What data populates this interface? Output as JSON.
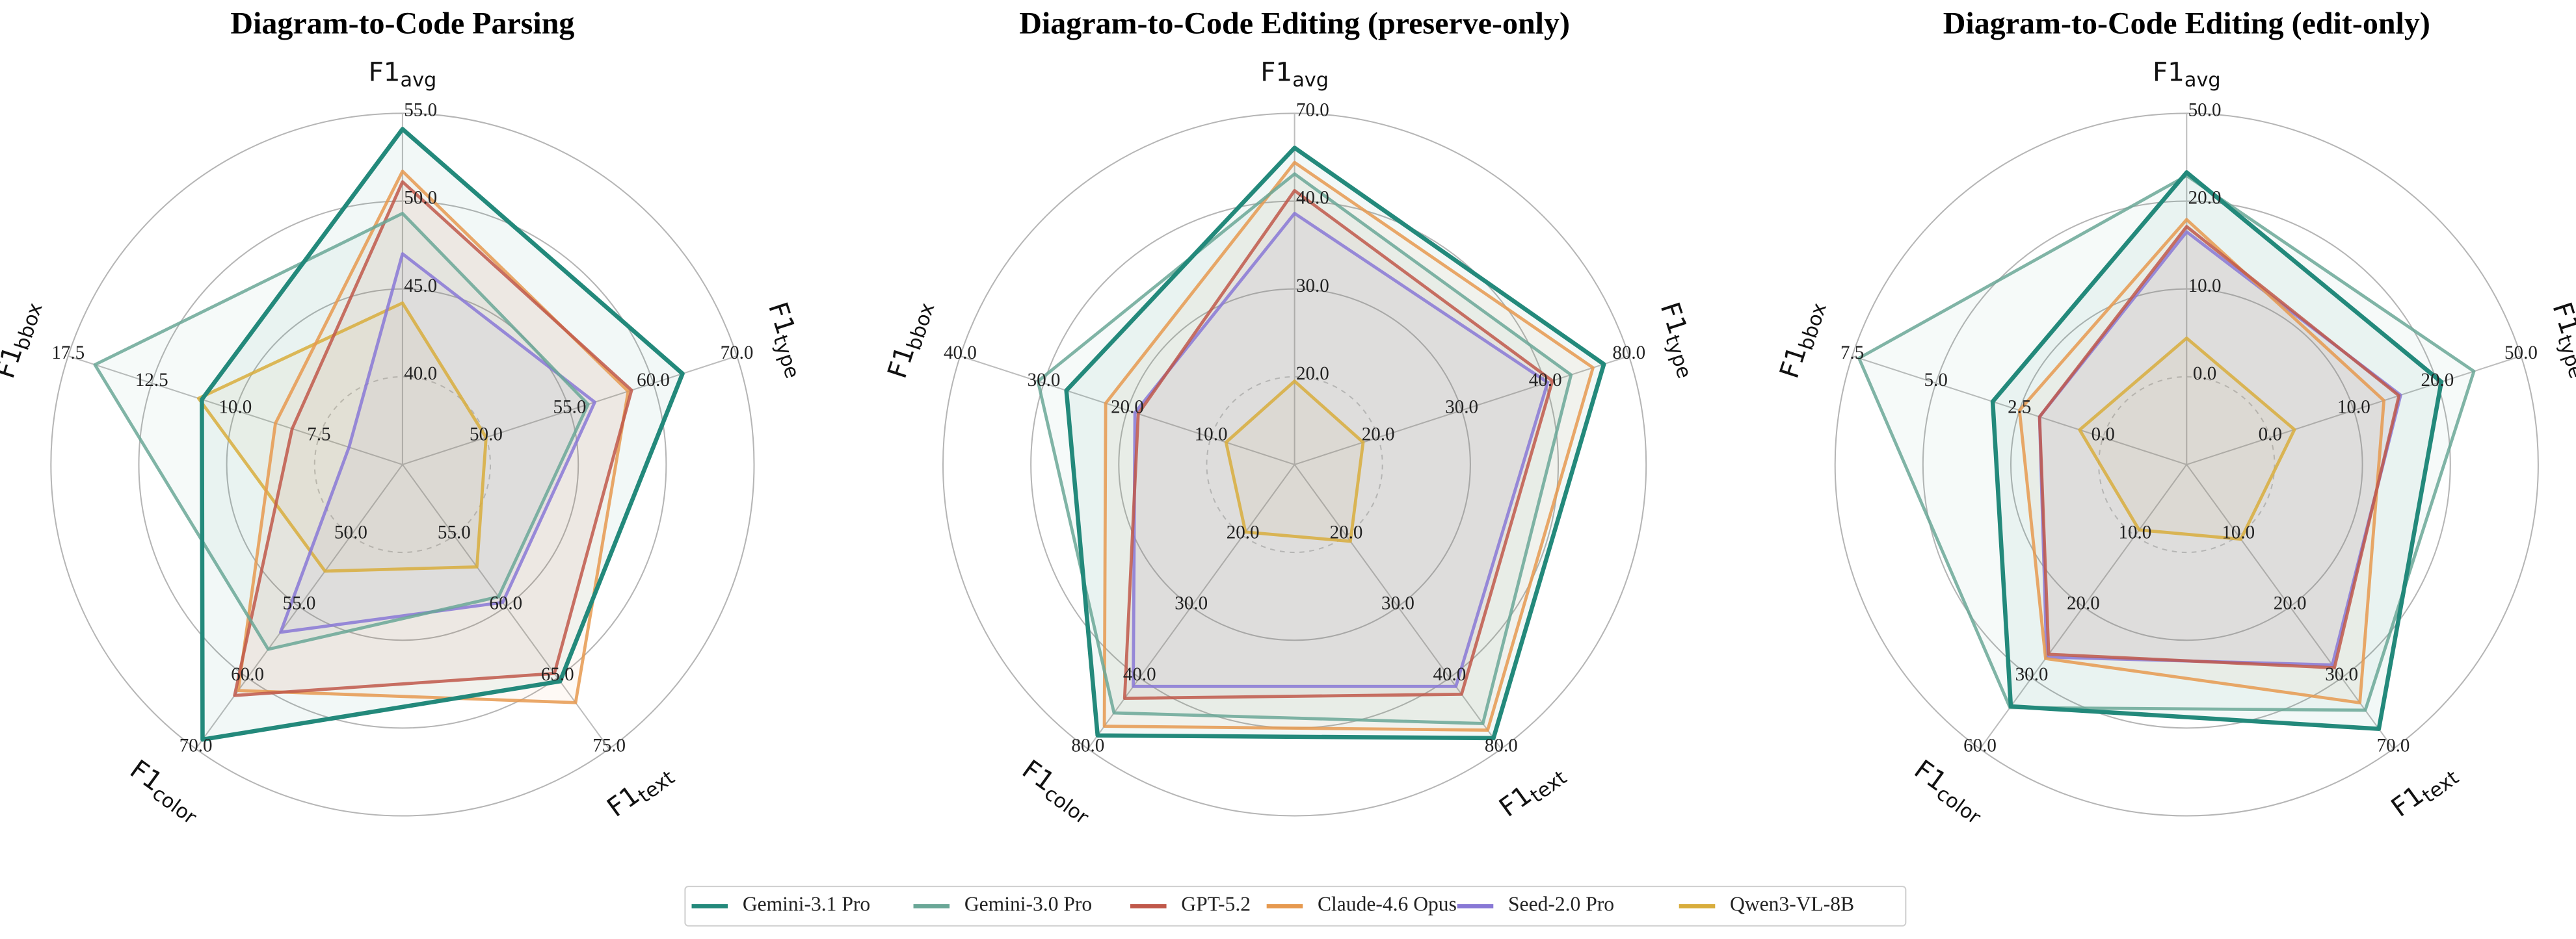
{
  "chart_data": [
    {
      "type": "radar",
      "title": "Diagram-to-Code Parsing",
      "axes": [
        {
          "label": "F1",
          "sub": "avg",
          "lim": [
            35,
            55
          ],
          "ticks": [
            {
              "value": 40,
              "label": "40.0"
            },
            {
              "value": 45,
              "label": "45.0"
            },
            {
              "value": 50,
              "label": "50.0"
            },
            {
              "value": 55,
              "label": "55.0"
            }
          ]
        },
        {
          "label": "F1",
          "sub": "type",
          "lim": [
            45,
            70
          ],
          "ticks": [
            {
              "value": 50,
              "label": "50.0"
            },
            {
              "value": 55,
              "label": "55.0"
            },
            {
              "value": 60,
              "label": "60.0"
            },
            {
              "value": 70,
              "label": "70.0"
            }
          ]
        },
        {
          "label": "F1",
          "sub": "text",
          "lim": [
            50,
            75
          ],
          "ticks": [
            {
              "value": 55,
              "label": "55.0"
            },
            {
              "value": 60,
              "label": "60.0"
            },
            {
              "value": 65,
              "label": "65.0"
            },
            {
              "value": 75,
              "label": "75.0"
            }
          ]
        },
        {
          "label": "F1",
          "sub": "color",
          "lim": [
            45,
            70
          ],
          "ticks": [
            {
              "value": 50,
              "label": "50.0"
            },
            {
              "value": 55,
              "label": "55.0"
            },
            {
              "value": 60,
              "label": "60.0"
            },
            {
              "value": 70,
              "label": "70.0"
            }
          ]
        },
        {
          "label": "F1",
          "sub": "bbox",
          "lim": [
            5,
            17.5
          ],
          "ticks": [
            {
              "value": 7.5,
              "label": "7.5"
            },
            {
              "value": 10,
              "label": "10.0"
            },
            {
              "value": 12.5,
              "label": "12.5"
            },
            {
              "value": 17.5,
              "label": "17.5"
            }
          ]
        }
      ],
      "series": [
        {
          "name": "Gemini-3.1 Pro",
          "color": "#23897b",
          "values": [
            54.1,
            63.5,
            65.5,
            68.7,
            11.0
          ]
        },
        {
          "name": "Gemini-3.0 Pro",
          "color": "#6aa797",
          "values": [
            49.3,
            56.1,
            59.3,
            58.0,
            15.9
          ]
        },
        {
          "name": "GPT-5.2",
          "color": "#c0584a",
          "values": [
            51.1,
            58.7,
            64.7,
            62.5,
            8.3
          ]
        },
        {
          "name": "Claude-4.6 Opus",
          "color": "#e6994f",
          "values": [
            51.7,
            58.5,
            68.5,
            61.8,
            8.8
          ]
        },
        {
          "name": "Seed-2.0 Pro",
          "color": "#8878d6",
          "values": [
            47.0,
            56.5,
            59.7,
            56.8,
            6.6
          ]
        },
        {
          "name": "Qwen3-VL-8B",
          "color": "#d8ad3c",
          "values": [
            44.2,
            50.0,
            57.2,
            52.5,
            11.1
          ]
        }
      ]
    },
    {
      "type": "radar",
      "title": "Diagram-to-Code Editing (preserve-only)",
      "axes": [
        {
          "label": "F1",
          "sub": "avg",
          "lim": [
            10,
            70
          ],
          "ticks": [
            {
              "value": 20,
              "label": "20.0"
            },
            {
              "value": 30,
              "label": "30.0"
            },
            {
              "value": 40,
              "label": "40.0"
            },
            {
              "value": 70,
              "label": "70.0"
            }
          ]
        },
        {
          "label": "F1",
          "sub": "type",
          "lim": [
            10,
            80
          ],
          "ticks": [
            {
              "value": 20,
              "label": "20.0"
            },
            {
              "value": 30,
              "label": "30.0"
            },
            {
              "value": 40,
              "label": "40.0"
            },
            {
              "value": 80,
              "label": "80.0"
            }
          ]
        },
        {
          "label": "F1",
          "sub": "text",
          "lim": [
            10,
            80
          ],
          "ticks": [
            {
              "value": 20,
              "label": "20.0"
            },
            {
              "value": 30,
              "label": "30.0"
            },
            {
              "value": 40,
              "label": "40.0"
            },
            {
              "value": 80,
              "label": "80.0"
            }
          ]
        },
        {
          "label": "F1",
          "sub": "color",
          "lim": [
            10,
            80
          ],
          "ticks": [
            {
              "value": 20,
              "label": "20.0"
            },
            {
              "value": 30,
              "label": "30.0"
            },
            {
              "value": 40,
              "label": "40.0"
            },
            {
              "value": 80,
              "label": "80.0"
            }
          ]
        },
        {
          "label": "F1",
          "sub": "bbox",
          "lim": [
            0,
            40
          ],
          "ticks": [
            {
              "value": 10,
              "label": "10.0"
            },
            {
              "value": 20,
              "label": "20.0"
            },
            {
              "value": 30,
              "label": "30.0"
            },
            {
              "value": 40,
              "label": "40.0"
            }
          ]
        }
      ],
      "series": [
        {
          "name": "Gemini-3.1 Pro",
          "color": "#23897b",
          "values": [
            58.2,
            68.0,
            74.0,
            72.5,
            27.3
          ]
        },
        {
          "name": "Gemini-3.0 Pro",
          "color": "#6aa797",
          "values": [
            49.3,
            52.3,
            65.8,
            59.8,
            30.7
          ]
        },
        {
          "name": "GPT-5.2",
          "color": "#c0584a",
          "values": [
            43.6,
            43.4,
            49.3,
            51.6,
            18.7
          ]
        },
        {
          "name": "Claude-4.6 Opus",
          "color": "#e6994f",
          "values": [
            53.2,
            62.8,
            69.5,
            67.3,
            22.6
          ]
        },
        {
          "name": "Seed-2.0 Pro",
          "color": "#8878d6",
          "values": [
            38.6,
            41.1,
            44.9,
            44.9,
            19.1
          ]
        },
        {
          "name": "Qwen3-VL-8B",
          "color": "#d8ad3c",
          "values": [
            19.5,
            18.2,
            20.8,
            19.5,
            8.2
          ]
        }
      ]
    },
    {
      "type": "radar",
      "title": "Diagram-to-Code Editing (edit-only)",
      "axes": [
        {
          "label": "F1",
          "sub": "avg",
          "lim": [
            -10,
            50
          ],
          "ticks": [
            {
              "value": 0,
              "label": "0.0"
            },
            {
              "value": 10,
              "label": "10.0"
            },
            {
              "value": 20,
              "label": "20.0"
            },
            {
              "value": 50,
              "label": "50.0"
            }
          ]
        },
        {
          "label": "F1",
          "sub": "type",
          "lim": [
            -10,
            50
          ],
          "ticks": [
            {
              "value": 0,
              "label": "0.0"
            },
            {
              "value": 10,
              "label": "10.0"
            },
            {
              "value": 20,
              "label": "20.0"
            },
            {
              "value": 50,
              "label": "50.0"
            }
          ]
        },
        {
          "label": "F1",
          "sub": "text",
          "lim": [
            0,
            70
          ],
          "ticks": [
            {
              "value": 10,
              "label": "10.0"
            },
            {
              "value": 20,
              "label": "20.0"
            },
            {
              "value": 30,
              "label": "30.0"
            },
            {
              "value": 70,
              "label": "70.0"
            }
          ]
        },
        {
          "label": "F1",
          "sub": "color",
          "lim": [
            0,
            60
          ],
          "ticks": [
            {
              "value": 10,
              "label": "10.0"
            },
            {
              "value": 20,
              "label": "20.0"
            },
            {
              "value": 30,
              "label": "30.0"
            },
            {
              "value": 60,
              "label": "60.0"
            }
          ]
        },
        {
          "label": "F1",
          "sub": "bbox",
          "lim": [
            -2.5,
            7.5
          ],
          "ticks": [
            {
              "value": 0,
              "label": "0.0"
            },
            {
              "value": 2.5,
              "label": "2.5"
            },
            {
              "value": 5,
              "label": "5.0"
            },
            {
              "value": 7.5,
              "label": "7.5"
            }
          ]
        }
      ],
      "series": [
        {
          "name": "Gemini-3.1 Pro",
          "color": "#23897b",
          "values": [
            29.8,
            21.4,
            58.8,
            42.1,
            3.3
          ]
        },
        {
          "name": "Gemini-3.0 Pro",
          "color": "#6aa797",
          "values": [
            28.7,
            33.1,
            48.3,
            42.6,
            7.3
          ]
        },
        {
          "name": "GPT-5.2",
          "color": "#c0584a",
          "values": [
            17.1,
            15.4,
            28.6,
            26.7,
            1.9
          ]
        },
        {
          "name": "Claude-4.6 Opus",
          "color": "#e6994f",
          "values": [
            17.9,
            13.6,
            44.1,
            27.3,
            2.5
          ]
        },
        {
          "name": "Seed-2.0 Pro",
          "color": "#8878d6",
          "values": [
            16.5,
            15.6,
            28.2,
            27.1,
            1.9
          ]
        },
        {
          "name": "Qwen3-VL-8B",
          "color": "#d8ad3c",
          "values": [
            4.4,
            2.9,
            10.5,
            9.2,
            0.7
          ]
        }
      ]
    }
  ]
}
